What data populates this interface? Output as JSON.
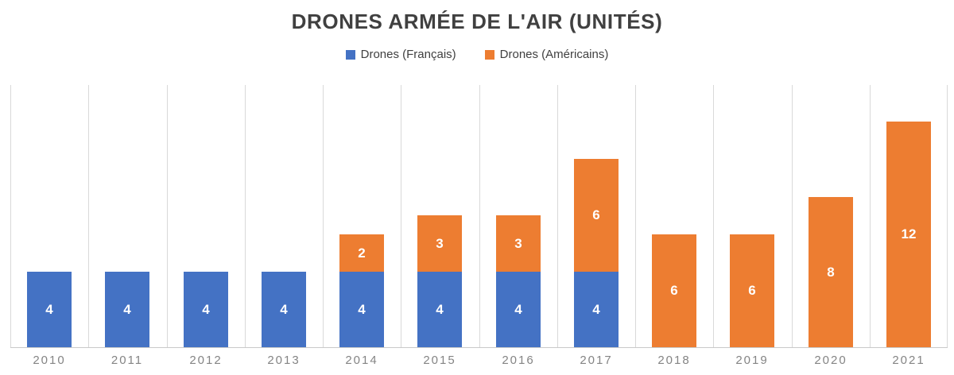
{
  "chart_data": {
    "type": "bar",
    "stacked": true,
    "title": "DRONES ARMÉE DE L'AIR (UNITÉS)",
    "categories": [
      "2010",
      "2011",
      "2012",
      "2013",
      "2014",
      "2015",
      "2016",
      "2017",
      "2018",
      "2019",
      "2020",
      "2021"
    ],
    "series": [
      {
        "name": "Drones (Français)",
        "color": "#4472C4",
        "values": [
          4,
          4,
          4,
          4,
          4,
          4,
          4,
          4,
          0,
          0,
          0,
          0
        ]
      },
      {
        "name": "Drones (Américains)",
        "color": "#ED7D31",
        "values": [
          0,
          0,
          0,
          0,
          2,
          3,
          3,
          6,
          6,
          6,
          8,
          12
        ]
      }
    ],
    "totals": [
      4,
      4,
      4,
      4,
      6,
      7,
      7,
      10,
      6,
      6,
      8,
      12
    ],
    "ylim": [
      0,
      14
    ],
    "xlabel": "",
    "ylabel": "",
    "grid": "vertical-category-lines-only",
    "legend_position": "top-center",
    "data_labels": "inside-center-white"
  },
  "style": {
    "background": "#FFFFFF",
    "title_color": "#404040",
    "legend_text_color": "#404040",
    "axis_label_color": "#848484",
    "gridline_color": "#D9D9D9",
    "axis_line_color": "#C9C9C9",
    "bar_label_color": "#FFFFFF"
  }
}
